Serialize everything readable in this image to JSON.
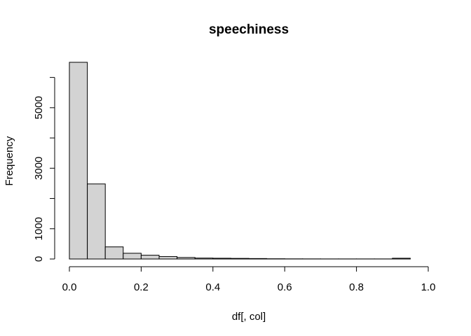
{
  "chart_data": {
    "type": "bar",
    "title": "speechiness",
    "xlabel": "df[, col]",
    "ylabel": "Frequency",
    "bin_edges": [
      0.0,
      0.05,
      0.1,
      0.15,
      0.2,
      0.25,
      0.3,
      0.35,
      0.4,
      0.45,
      0.5,
      0.55,
      0.6,
      0.65,
      0.7,
      0.75,
      0.8,
      0.85,
      0.9,
      0.95,
      1.0
    ],
    "values": [
      6500,
      2480,
      400,
      190,
      125,
      80,
      50,
      30,
      25,
      20,
      15,
      8,
      5,
      4,
      3,
      3,
      3,
      3,
      25,
      0
    ],
    "xlim": [
      0.0,
      1.0
    ],
    "ylim": [
      0,
      6500
    ],
    "x_ticks": [
      0.0,
      0.2,
      0.4,
      0.6,
      0.8,
      1.0
    ],
    "x_tick_labels": [
      "0.0",
      "0.2",
      "0.4",
      "0.6",
      "0.8",
      "1.0"
    ],
    "y_ticks": [
      0,
      1000,
      3000,
      5000
    ],
    "y_tick_labels": [
      "0",
      "1000",
      "3000",
      "5000"
    ],
    "bar_color": "#d3d3d3",
    "grid": false,
    "legend": "none"
  }
}
